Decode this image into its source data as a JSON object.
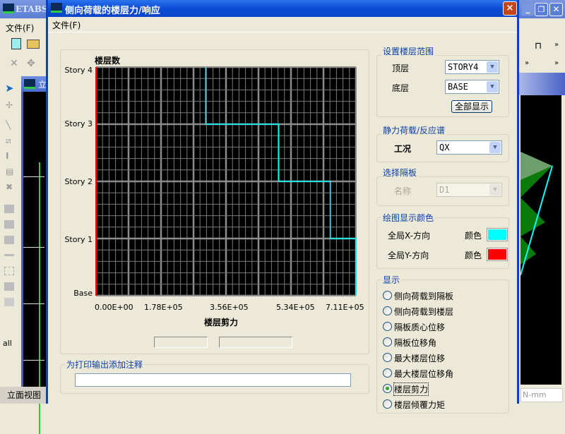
{
  "background_app": {
    "title": "ETABS",
    "menu_file": "文件(F)",
    "child_window_title": "立",
    "status_view": "立面视图",
    "units": "N-mm"
  },
  "dialog": {
    "title": "侧向荷载的楼层力/响应",
    "menu_file": "文件(F)",
    "close_label": "×"
  },
  "chart_data": {
    "type": "line",
    "title": "",
    "ylabel": "楼层数",
    "xlabel": "楼层剪力",
    "y_categories": [
      "Base",
      "Story 1",
      "Story 2",
      "Story 3",
      "Story 4"
    ],
    "x_ticks": [
      "0.00E+00",
      "1.78E+05",
      "3.56E+05",
      "5.34E+05",
      "7.11E+05"
    ],
    "xlim": [
      0,
      711000
    ],
    "grid": true,
    "background": "#000000",
    "series": [
      {
        "name": "全局X-方向",
        "color": "#00ffff",
        "steps": [
          {
            "from": "Story 4",
            "to": "Story 3",
            "x": 300000
          },
          {
            "from": "Story 3",
            "to": "Story 2",
            "x": 500000
          },
          {
            "from": "Story 2",
            "to": "Story 1",
            "x": 641000
          },
          {
            "from": "Story 1",
            "to": "Base",
            "x": 711000
          }
        ]
      },
      {
        "name": "全局Y-方向",
        "color": "#ff0000",
        "steps": [
          {
            "from": "Story 4",
            "to": "Base",
            "x": 0
          }
        ]
      }
    ]
  },
  "readouts": [
    "",
    ""
  ],
  "annotation": {
    "label": "为打印输出添加注释",
    "value": ""
  },
  "story_range": {
    "label": "设置楼层范围",
    "top_label": "顶层",
    "top_value": "STORY4",
    "bottom_label": "底层",
    "bottom_value": "BASE",
    "show_all": "全部显示"
  },
  "load_case": {
    "label": "静力荷载/反应谱",
    "case_label": "工况",
    "case_value": "QX"
  },
  "diaphragm": {
    "label": "选择隔板",
    "name_label": "名称",
    "name_value": "D1"
  },
  "colors": {
    "label": "绘图显示颜色",
    "x_label": "全局X-方向",
    "x_color_label": "颜色",
    "x_color": "#00ffff",
    "y_label": "全局Y-方向",
    "y_color_label": "颜色",
    "y_color": "#ff0000"
  },
  "display": {
    "label": "显示",
    "options": [
      "侧向荷载到隔板",
      "侧向荷载到楼层",
      "隔板质心位移",
      "隔板位移角",
      "最大楼层位移",
      "最大楼层位移角",
      "楼层剪力",
      "楼层倾覆力矩"
    ],
    "selected": "楼层剪力"
  }
}
